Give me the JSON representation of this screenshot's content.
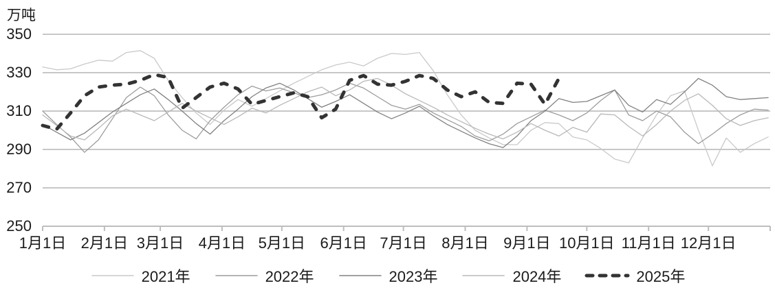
{
  "chart_data": {
    "type": "line",
    "title": "",
    "unit_label": "万吨",
    "xlabel": "",
    "ylabel": "万吨",
    "ylim": [
      250,
      350
    ],
    "yticks": [
      250,
      270,
      290,
      310,
      330,
      350
    ],
    "x_tick_labels": [
      "1月1日",
      "2月1日",
      "3月1日",
      "4月1日",
      "5月1日",
      "6月1日",
      "7月1日",
      "8月1日",
      "9月1日",
      "10月1日",
      "11月1日",
      "12月1日"
    ],
    "x_axis_note": "calendar days Jan1–Dec31; series sampled weekly starting Jan 1",
    "grid": "horizontal gridlines on",
    "legend_position": "bottom",
    "colors": {
      "grid": "#c7c7c7",
      "axis": "#bdbdbd",
      "text": "#1a1a1a"
    },
    "series": [
      {
        "name": "2021年",
        "color": "#c9c9c9",
        "dashed": false,
        "width": 1.3,
        "interval_days": 7,
        "values": [
          333,
          331.5,
          332,
          334.5,
          336.5,
          336,
          340.5,
          341.5,
          337.5,
          326,
          317,
          309,
          303,
          310.5,
          316,
          312.5,
          316.5,
          320.5,
          324.5,
          328,
          331.5,
          334,
          335.5,
          333.5,
          337.5,
          340,
          339.5,
          340.5,
          331,
          318.5,
          308,
          300,
          296,
          292.5,
          292.5,
          300,
          304,
          303.5,
          296.5,
          295,
          290.5,
          285,
          283,
          296,
          308,
          318,
          320.5,
          300,
          281.5,
          296,
          288.5,
          293,
          296.5
        ]
      },
      {
        "name": "2022年",
        "color": "#9c9c9c",
        "dashed": false,
        "width": 1.3,
        "interval_days": 7,
        "values": [
          310,
          303,
          296.5,
          288.5,
          295,
          306,
          317,
          322.5,
          318,
          308,
          300,
          295.5,
          305,
          312,
          318.5,
          323,
          320.5,
          322,
          319.5,
          317,
          318.5,
          321,
          324.5,
          322,
          317.5,
          313,
          311,
          313.5,
          309,
          305.5,
          302,
          297,
          294.5,
          298,
          303.5,
          307,
          310.5,
          308,
          305,
          309,
          315.5,
          321,
          308,
          305,
          310,
          307,
          299,
          293,
          298,
          303.5,
          308,
          311,
          310.5
        ]
      },
      {
        "name": "2023年",
        "color": "#808080",
        "dashed": false,
        "width": 1.3,
        "interval_days": 7,
        "values": [
          303,
          299,
          295,
          298.5,
          304,
          309.5,
          314,
          318.5,
          321.5,
          316,
          310,
          303.5,
          298,
          305,
          311,
          317.5,
          322,
          324.5,
          321,
          316.5,
          312,
          315,
          318.5,
          314,
          309.5,
          306,
          309,
          312.5,
          307.5,
          303,
          299.5,
          296,
          293,
          291,
          297,
          305,
          310,
          316.5,
          314.5,
          315,
          318,
          321,
          313,
          309.5,
          316,
          313.5,
          320,
          327,
          323.5,
          317.5,
          316,
          316.5,
          317
        ]
      },
      {
        "name": "2024年",
        "color": "#b8b8b8",
        "dashed": false,
        "width": 1.3,
        "interval_days": 7,
        "values": [
          308,
          302.5,
          297,
          295,
          301,
          307.5,
          311,
          308,
          305,
          309.5,
          314,
          310,
          306.5,
          303,
          307,
          311.5,
          309,
          313,
          316.5,
          320,
          322.5,
          318,
          321,
          325.5,
          327,
          323.5,
          319,
          315.5,
          312,
          308,
          304.5,
          301,
          298,
          295.5,
          299,
          303.5,
          300,
          297,
          301.5,
          299,
          308.5,
          308,
          302,
          297,
          303,
          310,
          315.5,
          319,
          313,
          306,
          302.5,
          305,
          306.5
        ]
      },
      {
        "name": "2025年",
        "color": "#333333",
        "dashed": true,
        "width": 5,
        "interval_days": 7,
        "values": [
          302.5,
          300.5,
          309,
          318,
          322.5,
          323.5,
          324,
          326,
          329,
          327.5,
          311.5,
          317,
          322.5,
          324.5,
          321.5,
          313.5,
          315.5,
          317.5,
          319.5,
          317.5,
          306.5,
          311,
          326,
          328.5,
          324,
          323.5,
          325.5,
          328.5,
          327,
          321,
          317.5,
          320,
          314.5,
          314,
          324.5,
          324,
          313.5,
          327
        ]
      }
    ]
  }
}
